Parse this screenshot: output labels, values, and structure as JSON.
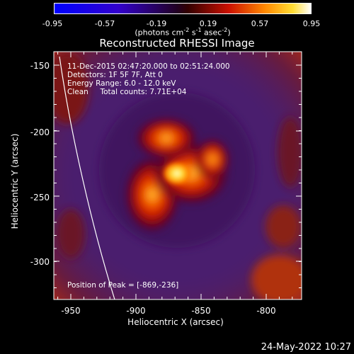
{
  "colorbar": {
    "ticks": [
      "-0.95",
      "-0.57",
      "-0.19",
      "0.19",
      "0.57",
      "0.95"
    ],
    "units": "(photons cm",
    "units_exp1": "-2",
    "units_mid": " s",
    "units_exp2": "-1",
    "units_mid2": " asec",
    "units_exp3": "-2",
    "units_end": ")"
  },
  "chart_data": {
    "type": "heatmap",
    "title": "Reconstructed RHESSI Image",
    "xlabel": "Heliocentric X (arcsec)",
    "ylabel": "Heliocentric Y (arcsec)",
    "xlim": [
      -963,
      -827
    ],
    "ylim": [
      -327,
      -143
    ],
    "x_ticks": [
      "-950",
      "-900",
      "-850",
      "-800"
    ],
    "y_ticks": [
      "-150",
      "-200",
      "-250",
      "-300"
    ],
    "color_range": [
      -0.95,
      0.95
    ],
    "peak": [
      -869,
      -236
    ],
    "annotations": {
      "time": "11-Dec-2015 02:47:20.000 to 02:51:24.000",
      "detectors": "Detectors: 1F 5F 7F, Att 0",
      "energy": "Energy Range: 6.0 - 12.0 keV",
      "clean": "Clean     Total counts: 7.71E+04",
      "peak_label": "Position of Peak = [-869,-236]"
    }
  },
  "footer": {
    "date": "24-May-2022 10:27"
  }
}
